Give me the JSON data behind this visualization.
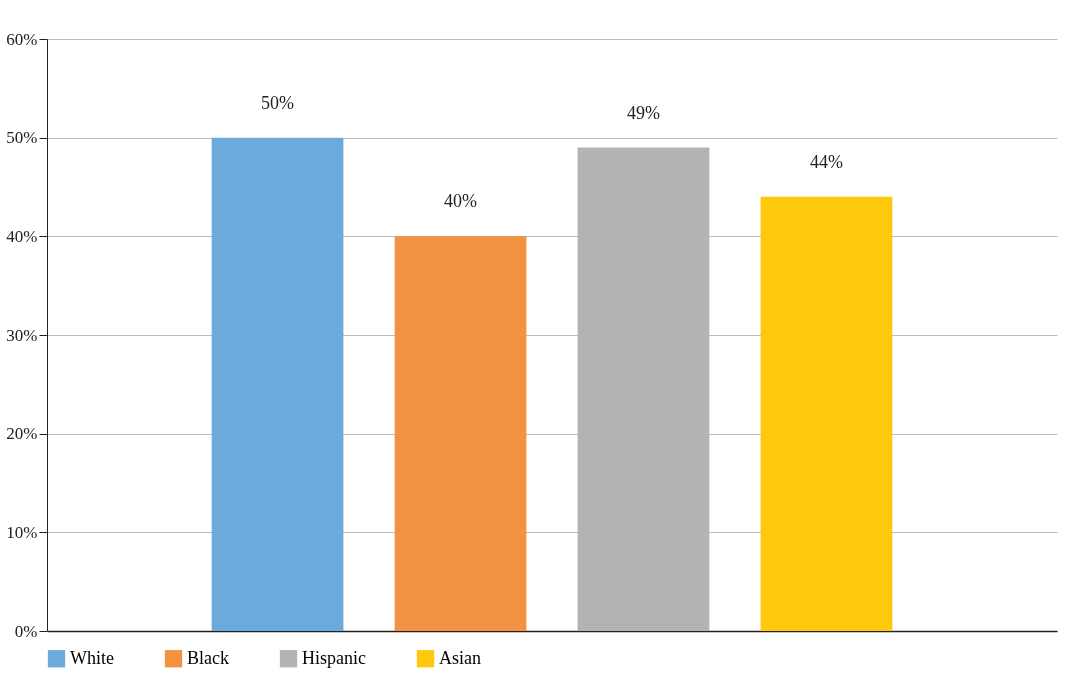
{
  "chart_data": {
    "type": "bar",
    "categories": [
      null
    ],
    "series": [
      {
        "name": "White",
        "color": "#6aaadc",
        "values": [
          50
        ],
        "value_labels": [
          "50%"
        ]
      },
      {
        "name": "Black",
        "color": "#f39241",
        "values": [
          40
        ],
        "value_labels": [
          "40%"
        ]
      },
      {
        "name": "Hispanic",
        "color": "#b3b3b3",
        "values": [
          49
        ],
        "value_labels": [
          "49%"
        ]
      },
      {
        "name": "Asian",
        "color": "#fec80c",
        "values": [
          44
        ],
        "value_labels": [
          "44%"
        ]
      }
    ],
    "ylim": [
      0,
      60
    ],
    "yticks": [
      {
        "value": 0,
        "label": "0%"
      },
      {
        "value": 10,
        "label": "10%"
      },
      {
        "value": 20,
        "label": "20%"
      },
      {
        "value": 30,
        "label": "30%"
      },
      {
        "value": 40,
        "label": "40%"
      },
      {
        "value": 50,
        "label": "50%"
      },
      {
        "value": 60,
        "label": "60%"
      }
    ],
    "grid": "y",
    "legend": "bottom",
    "tick_labels": "y"
  }
}
